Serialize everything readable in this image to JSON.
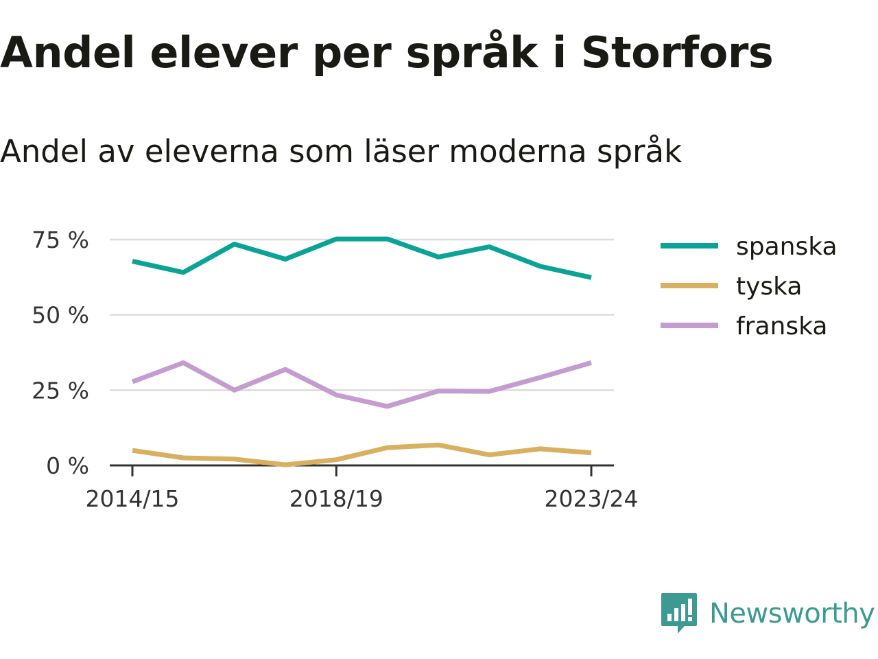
{
  "chart_data": {
    "type": "line",
    "title": "Andel elever per språk i Storfors",
    "subtitle": "Andel av eleverna som läser moderna språk",
    "x": [
      "2014/15",
      "2015/16",
      "2016/17",
      "2017/18",
      "2018/19",
      "2019/20",
      "2020/21",
      "2021/22",
      "2022/23",
      "2023/24"
    ],
    "x_tick_labels": [
      "2014/15",
      "2018/19",
      "2023/24"
    ],
    "y_tick_labels": [
      "0 %",
      "25 %",
      "50 %",
      "75 %"
    ],
    "y_ticks": [
      0,
      25,
      50,
      75
    ],
    "ylim": [
      0,
      75
    ],
    "grid": true,
    "legend_position": "right",
    "series": [
      {
        "name": "spanska",
        "color": "#0aa396",
        "values": [
          67.8,
          64.1,
          73.5,
          68.5,
          75.2,
          75.2,
          69.2,
          72.6,
          66.1,
          62.4
        ]
      },
      {
        "name": "tyska",
        "color": "#d9b060",
        "values": [
          5.0,
          2.5,
          2.1,
          0.2,
          1.9,
          5.9,
          6.8,
          3.5,
          5.5,
          4.2
        ]
      },
      {
        "name": "franska",
        "color": "#c49ccf",
        "values": [
          27.8,
          34.1,
          25.0,
          31.9,
          23.4,
          19.6,
          24.7,
          24.6,
          29.2,
          34.1
        ]
      }
    ]
  },
  "brand": {
    "name": "Newsworthy",
    "icon": "newsworthy-logo-icon",
    "color": "#3c9a92"
  }
}
